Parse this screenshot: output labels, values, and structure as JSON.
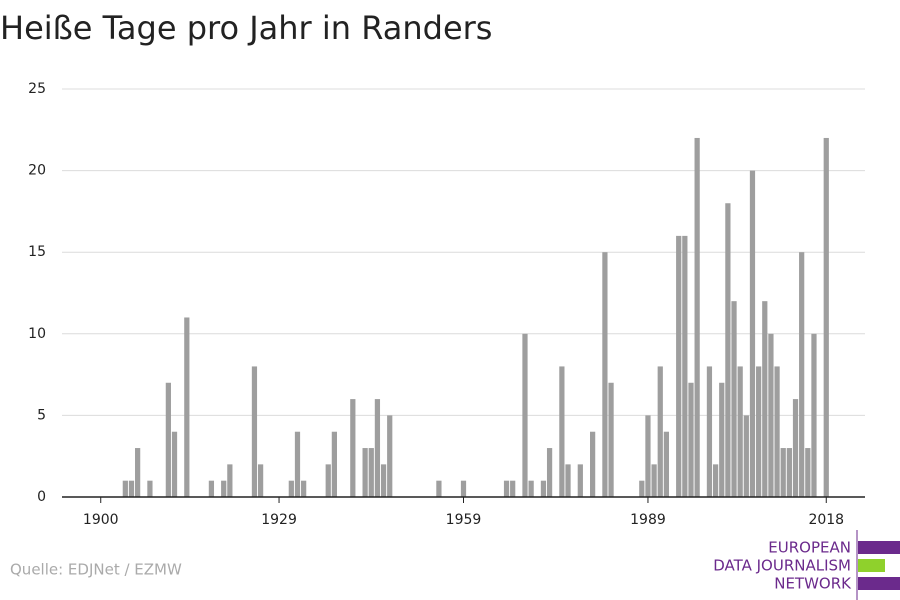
{
  "chart_data": {
    "type": "bar",
    "title": "Heiße Tage pro Jahr in Randers",
    "x": [
      1904,
      1905,
      1906,
      1908,
      1911,
      1912,
      1914,
      1918,
      1920,
      1921,
      1925,
      1926,
      1931,
      1932,
      1933,
      1937,
      1938,
      1941,
      1943,
      1944,
      1945,
      1946,
      1947,
      1955,
      1959,
      1966,
      1967,
      1969,
      1970,
      1972,
      1973,
      1975,
      1976,
      1978,
      1980,
      1982,
      1983,
      1988,
      1989,
      1990,
      1991,
      1992,
      1994,
      1995,
      1996,
      1997,
      1999,
      2000,
      2001,
      2002,
      2003,
      2004,
      2005,
      2006,
      2007,
      2008,
      2009,
      2010,
      2011,
      2012,
      2013,
      2014,
      2015,
      2016,
      2018
    ],
    "values": [
      1,
      1,
      3,
      1,
      7,
      4,
      11,
      1,
      1,
      2,
      8,
      2,
      1,
      4,
      1,
      2,
      4,
      6,
      3,
      3,
      6,
      2,
      5,
      1,
      1,
      1,
      1,
      10,
      1,
      1,
      3,
      8,
      2,
      2,
      4,
      15,
      7,
      1,
      5,
      2,
      8,
      4,
      16,
      16,
      7,
      22,
      8,
      2,
      7,
      18,
      12,
      8,
      5,
      20,
      8,
      12,
      10,
      8,
      3,
      3,
      6,
      15,
      3,
      10,
      22
    ],
    "color": "#9e9e9e",
    "xlim": [
      1893.7,
      2024.3
    ],
    "xticks": [
      1900,
      1929,
      1959,
      1989,
      2018
    ],
    "ylim": [
      0,
      25
    ],
    "yticks": [
      0,
      5,
      10,
      15,
      20,
      25
    ],
    "grid": true
  },
  "source": "Quelle: EDJNet / EZMW",
  "logo": [
    "EUROPEAN",
    "DATA JOURNALISM",
    "NETWORK"
  ]
}
